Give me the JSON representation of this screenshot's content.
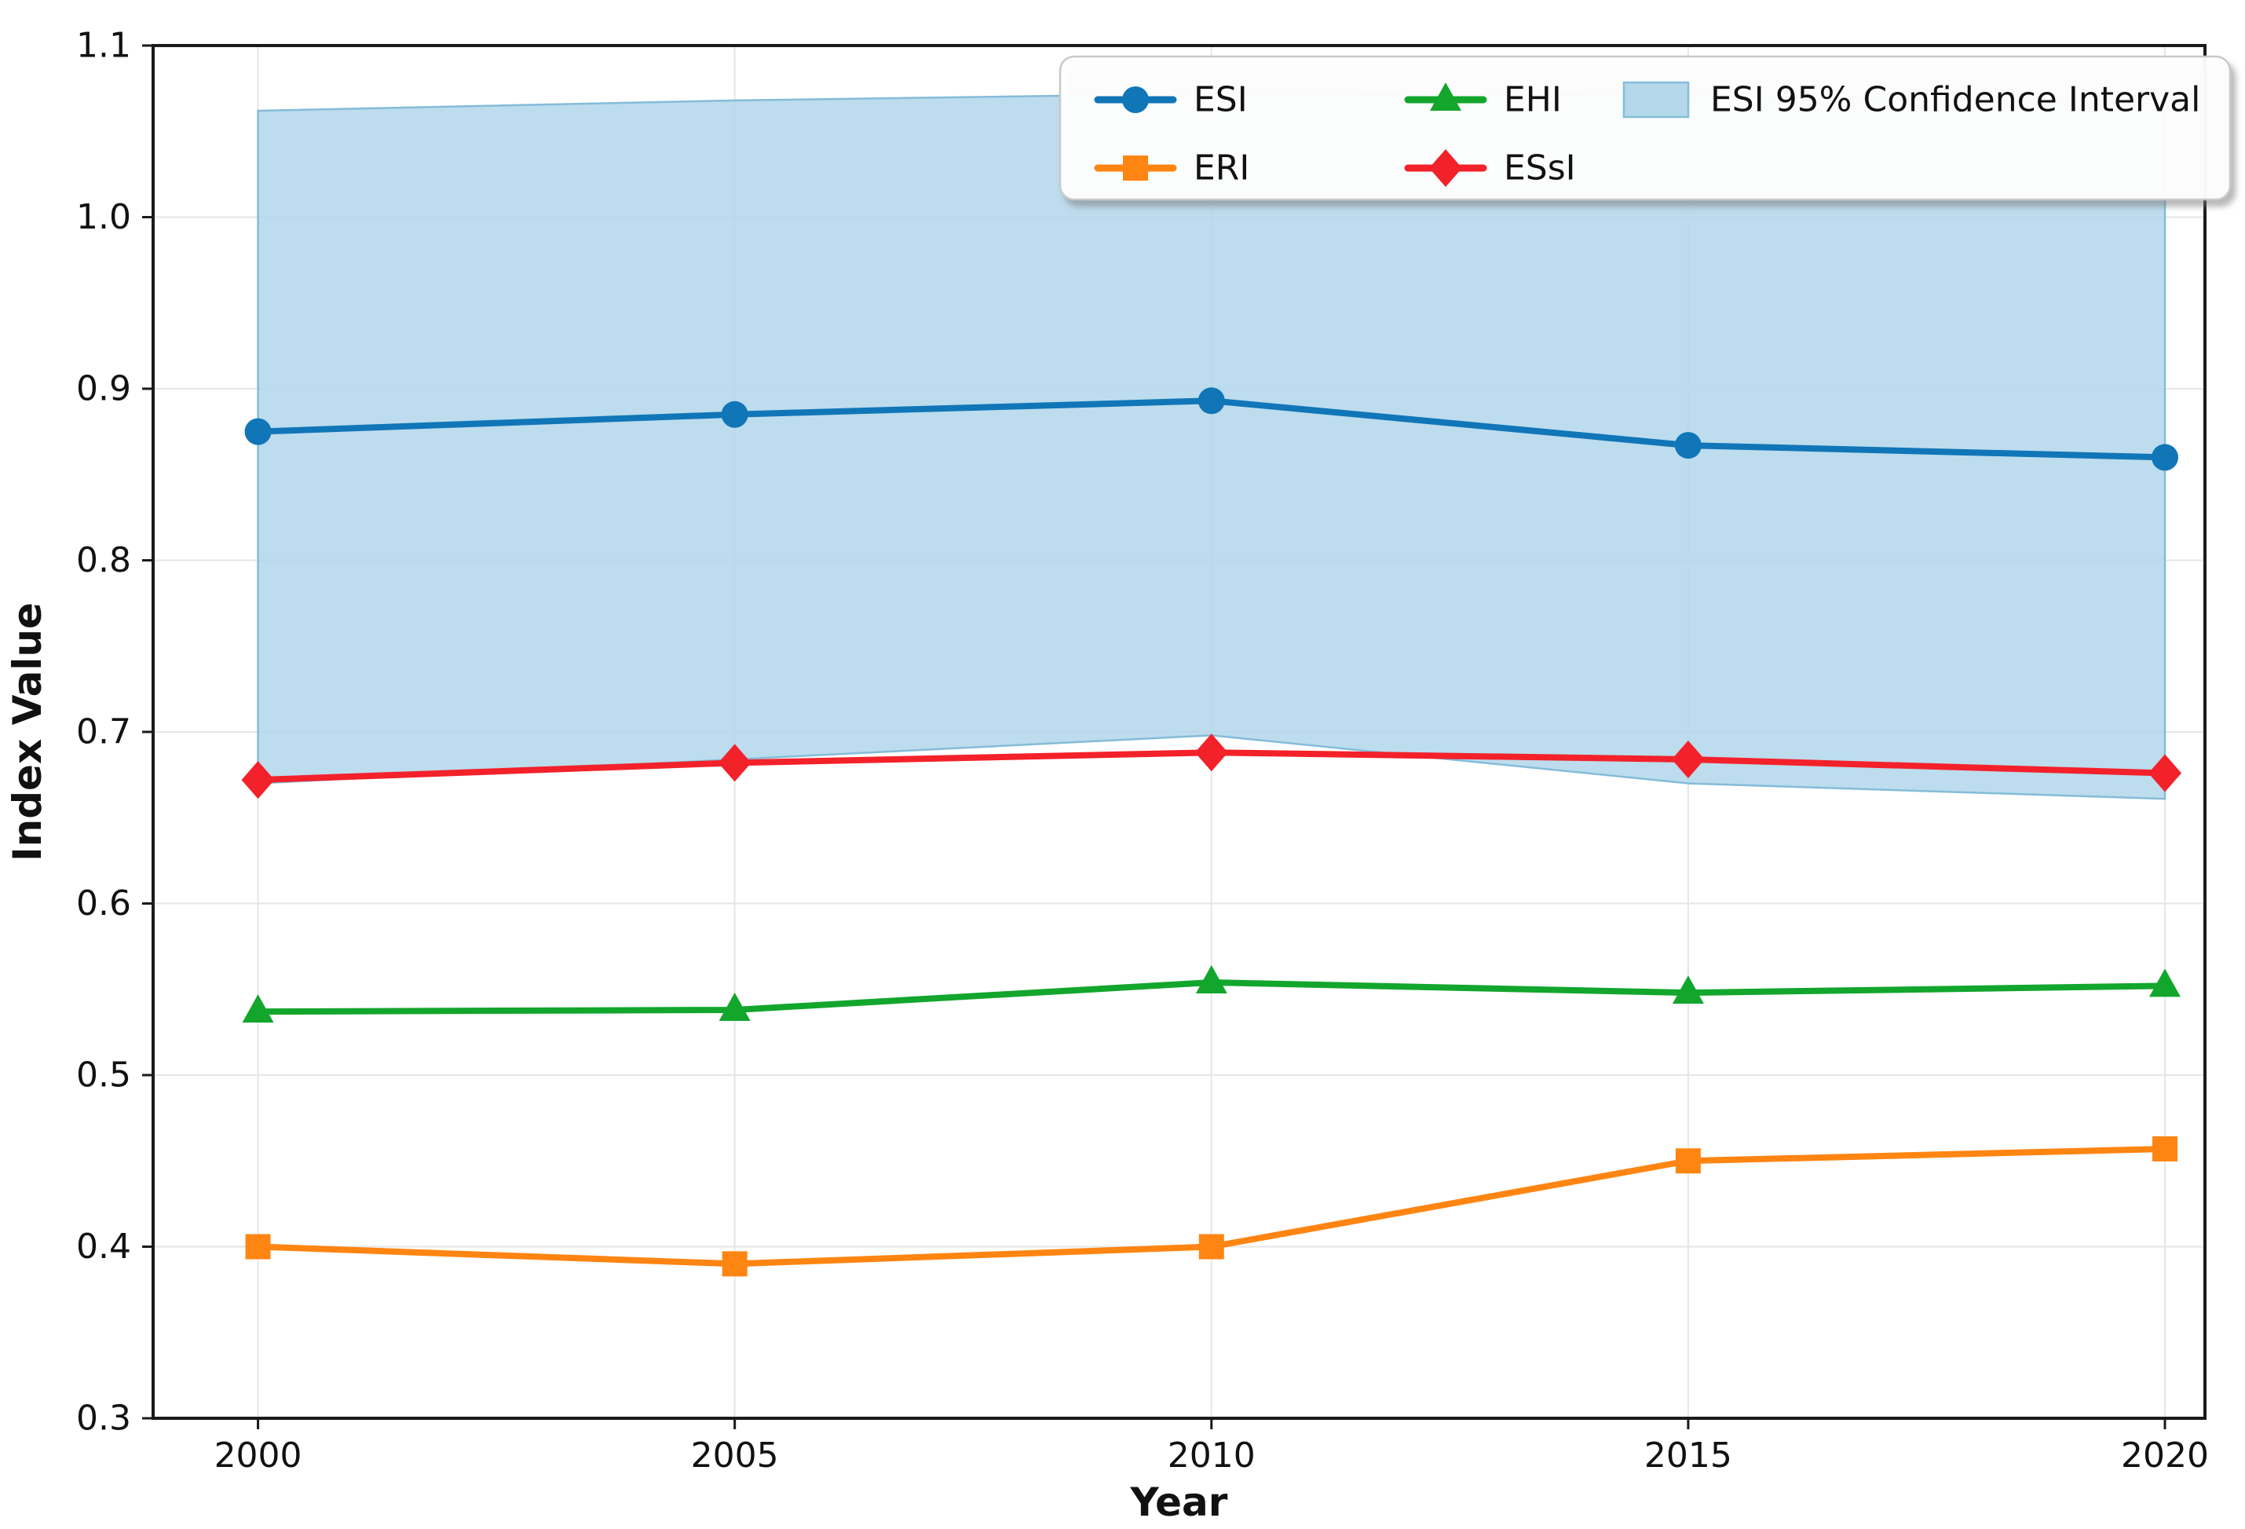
{
  "figure": {
    "background": "#ffffff"
  },
  "chart_data": {
    "type": "line",
    "title": "",
    "xlabel": "Year",
    "ylabel": "Index Value",
    "x": [
      2000,
      2005,
      2010,
      2015,
      2020
    ],
    "xticklabels": [
      "2000",
      "2005",
      "2010",
      "2015",
      "2020"
    ],
    "yticks": [
      0.3,
      0.4,
      0.5,
      0.6,
      0.7,
      0.8,
      0.9,
      1.0,
      1.1
    ],
    "yticklabels": [
      "0.3",
      "0.4",
      "0.5",
      "0.6",
      "0.7",
      "0.8",
      "0.9",
      "1.0",
      "1.1"
    ],
    "xlim": [
      1998.9,
      2020.42
    ],
    "ylim": [
      0.3,
      1.1
    ],
    "grid": true,
    "grid_color": "#e6e6e6",
    "spine_color": "#1a1a1a",
    "legend_position": "upper right",
    "series": [
      {
        "name": "ESI",
        "marker": "circle",
        "color": "#1076b8",
        "values": [
          0.875,
          0.885,
          0.893,
          0.867,
          0.86
        ]
      },
      {
        "name": "ERI",
        "marker": "square",
        "color": "#ff8512",
        "values": [
          0.4,
          0.39,
          0.4,
          0.45,
          0.457
        ]
      },
      {
        "name": "EHI",
        "marker": "triangle",
        "color": "#13a62d",
        "values": [
          0.537,
          0.538,
          0.554,
          0.548,
          0.552
        ]
      },
      {
        "name": "ESsI",
        "marker": "diamond",
        "color": "#f3212a",
        "values": [
          0.672,
          0.682,
          0.688,
          0.684,
          0.676
        ]
      }
    ],
    "confidence_band": {
      "label": "ESI 95% Confidence Interval",
      "series": "ESI",
      "fill_color": "#b4d7ea",
      "edge_color": "#85bcd9",
      "upper": [
        1.062,
        1.068,
        1.072,
        1.071,
        1.066
      ],
      "lower": [
        0.67,
        0.684,
        0.698,
        0.67,
        0.661
      ]
    }
  }
}
